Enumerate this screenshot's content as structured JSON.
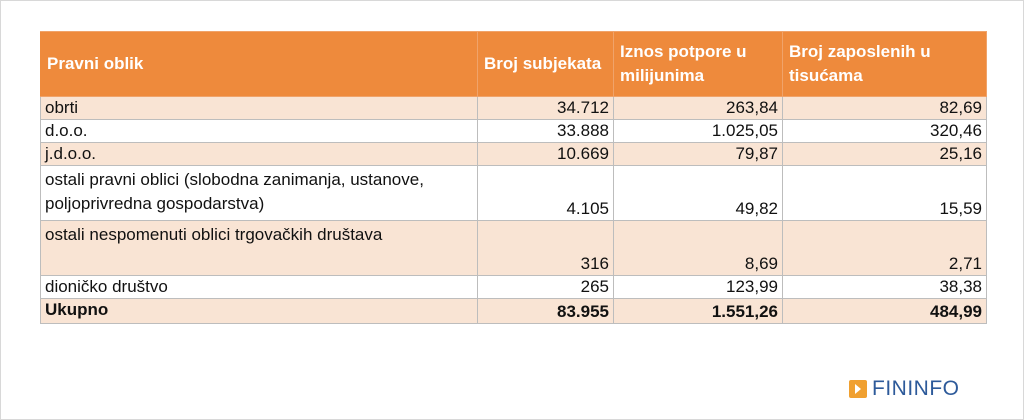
{
  "table": {
    "columns": [
      "Pravni oblik",
      "Broj subjekata",
      "Iznos potpore u milijunima",
      "Broj zaposlenih u tisućama"
    ],
    "rows": [
      {
        "label": "obrti",
        "broj_subjekata": "34.712",
        "iznos_potpore": "263,84",
        "broj_zaposlenih": "82,69"
      },
      {
        "label": "d.o.o.",
        "broj_subjekata": "33.888",
        "iznos_potpore": "1.025,05",
        "broj_zaposlenih": "320,46"
      },
      {
        "label": "j.d.o.o.",
        "broj_subjekata": "10.669",
        "iznos_potpore": "79,87",
        "broj_zaposlenih": "25,16"
      },
      {
        "label": "ostali pravni oblici (slobodna zanimanja, ustanove, poljoprivredna gospodarstva)",
        "broj_subjekata": "4.105",
        "iznos_potpore": "49,82",
        "broj_zaposlenih": "15,59"
      },
      {
        "label": "ostali nespomenuti oblici trgovačkih društava",
        "broj_subjekata": "316",
        "iznos_potpore": "8,69",
        "broj_zaposlenih": "2,71"
      },
      {
        "label": "dioničko društvo",
        "broj_subjekata": "265",
        "iznos_potpore": "123,99",
        "broj_zaposlenih": "38,38"
      }
    ],
    "total": {
      "label": "Ukupno",
      "broj_subjekata": "83.955",
      "iznos_potpore": "1.551,26",
      "broj_zaposlenih": "484,99"
    }
  },
  "logo": {
    "text": "FININFO",
    "icon": "play-arrow-icon",
    "text_color": "#2d5a9a",
    "icon_color": "#f0a030"
  },
  "colors": {
    "header_bg": "#ee8a3c",
    "shaded_row": "#f9e4d4"
  }
}
